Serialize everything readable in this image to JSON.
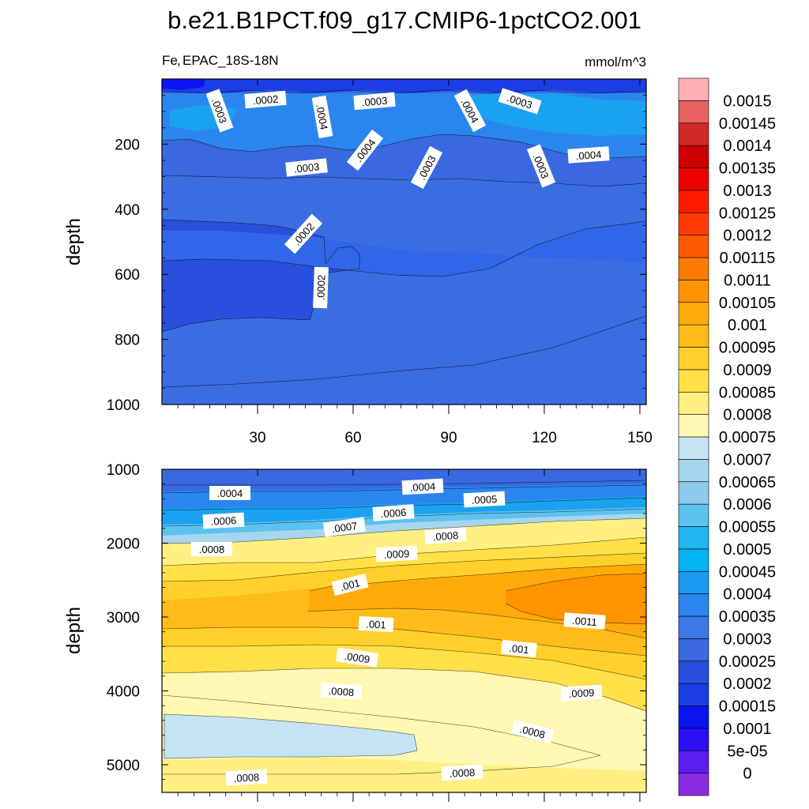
{
  "chart_data": {
    "type": "filled-contour",
    "title": "b.e21.B1PCT.f09_g17.CMIP6-1pctCO2.001",
    "variable": "Fe",
    "region": "EPAC_18S-18N",
    "units": "mmol/m^3",
    "ylabel": "depth",
    "colorbar_levels": [
      "0",
      "5e-05",
      "0.0001",
      "0.00015",
      "0.0002",
      "0.00025",
      "0.0003",
      "0.00035",
      "0.0004",
      "0.00045",
      "0.0005",
      "0.00055",
      "0.0006",
      "0.00065",
      "0.0007",
      "0.00075",
      "0.0008",
      "0.00085",
      "0.0009",
      "0.00095",
      "0.001",
      "0.00105",
      "0.0011",
      "0.00115",
      "0.0012",
      "0.00125",
      "0.0013",
      "0.00135",
      "0.0014",
      "0.00145",
      "0.0015"
    ],
    "colorbar_colors": [
      "#8a2be2",
      "#5b1ff0",
      "#2a0ff5",
      "#0a14f0",
      "#1b3de6",
      "#2a4fdc",
      "#3a68e0",
      "#3e78e8",
      "#2a86ee",
      "#1a9af2",
      "#00b4f5",
      "#22b6f2",
      "#5cc2f0",
      "#8ccbeb",
      "#a6d6ee",
      "#c4e4f4",
      "#fff7b2",
      "#ffee80",
      "#ffe047",
      "#ffd02a",
      "#ffbb18",
      "#ffaa0a",
      "#ff9400",
      "#ff7a00",
      "#ff5a00",
      "#ff3c08",
      "#ff1a00",
      "#ee0000",
      "#cc0000",
      "#d22828",
      "#e86262",
      "#ffb0b4"
    ],
    "panels": [
      {
        "name": "upper",
        "xticks": [
          "30",
          "60",
          "90",
          "120",
          "150"
        ],
        "yticks": [
          "200",
          "400",
          "600",
          "800",
          "1000"
        ],
        "ylim": [
          0,
          1000
        ],
        "xlim": [
          0,
          152
        ],
        "contour_labels": [
          ".0003",
          ".0002",
          ".0004",
          ".0003",
          ".0004",
          ".0003",
          ".0004",
          ".0003",
          ".0003",
          ".0004",
          ".0003",
          ".0002",
          ".0002"
        ]
      },
      {
        "name": "lower",
        "xticks": [],
        "yticks": [
          "1000",
          "2000",
          "3000",
          "4000",
          "5000"
        ],
        "ylim": [
          1000,
          5375
        ],
        "xlim": [
          0,
          152
        ],
        "contour_labels": [
          ".0004",
          ".0004",
          ".0005",
          ".0006",
          ".0006",
          ".0007",
          ".0008",
          ".0008",
          ".0009",
          ".001",
          ".001",
          ".0011",
          ".001",
          ".0009",
          ".0008",
          ".0009",
          ".0008",
          ".0008",
          ".0008"
        ]
      }
    ]
  }
}
